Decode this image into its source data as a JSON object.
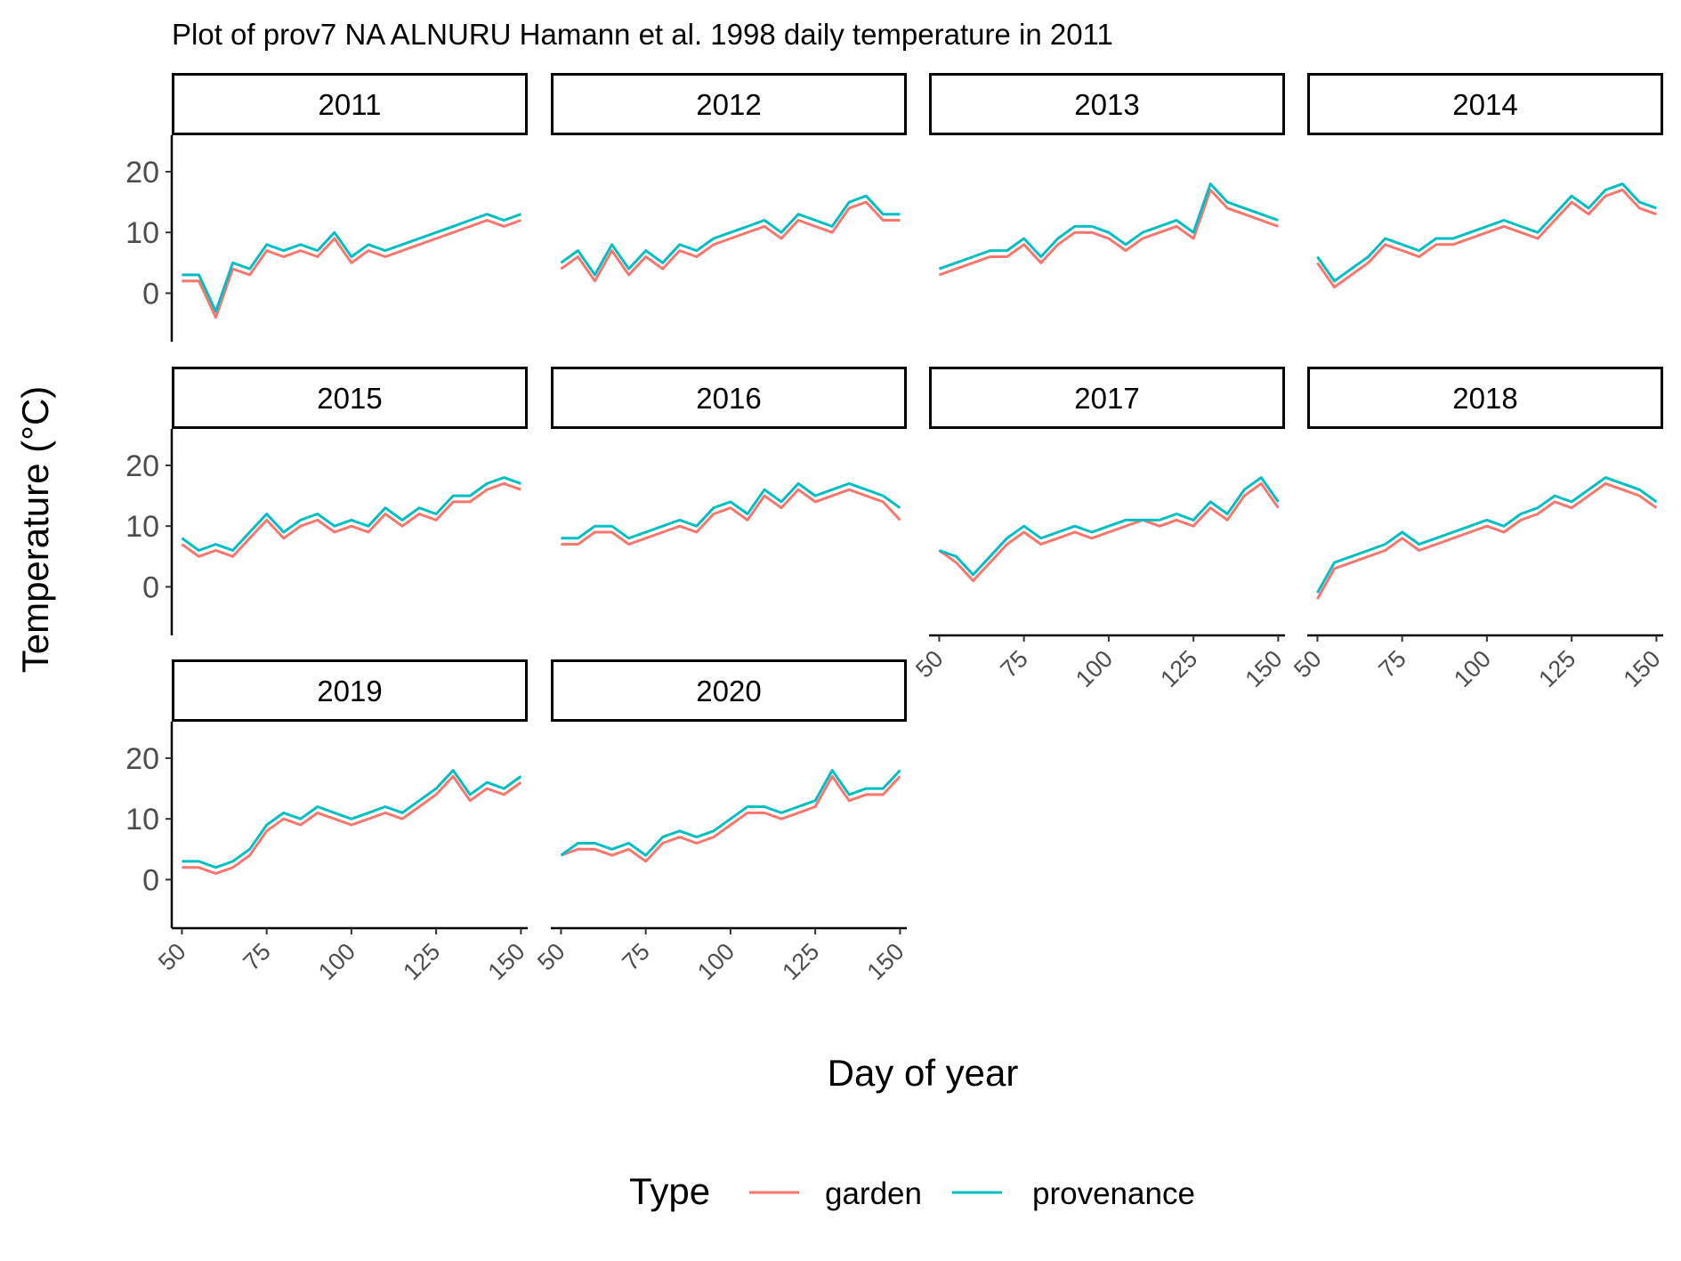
{
  "chart_data": {
    "type": "line",
    "title": "Plot of prov7 NA ALNURU Hamann et al. 1998 daily temperature in 2011",
    "xlabel": "Day of year",
    "ylabel": "Temperature (°C)",
    "xlim": [
      47,
      152
    ],
    "ylim": [
      -8,
      26
    ],
    "x_ticks": [
      50,
      75,
      100,
      125,
      150
    ],
    "y_ticks": [
      0,
      10,
      20
    ],
    "legend": {
      "title": "Type",
      "position": "bottom",
      "entries": [
        {
          "label": "garden",
          "color": "#F8766D"
        },
        {
          "label": "provenance",
          "color": "#00BFC4"
        }
      ]
    },
    "x": [
      50,
      55,
      60,
      65,
      70,
      75,
      80,
      85,
      90,
      95,
      100,
      105,
      110,
      115,
      120,
      125,
      130,
      135,
      140,
      145,
      150
    ],
    "panels": [
      {
        "label": "2011",
        "garden": [
          2,
          2,
          -4,
          4,
          3,
          7,
          6,
          7,
          6,
          9,
          5,
          7,
          6,
          7,
          8,
          9,
          10,
          11,
          12,
          11,
          12
        ],
        "provenance": [
          3,
          3,
          -3,
          5,
          4,
          8,
          7,
          8,
          7,
          10,
          6,
          8,
          7,
          8,
          9,
          10,
          11,
          12,
          13,
          12,
          13
        ]
      },
      {
        "label": "2012",
        "garden": [
          4,
          6,
          2,
          7,
          3,
          6,
          4,
          7,
          6,
          8,
          9,
          10,
          11,
          9,
          12,
          11,
          10,
          14,
          15,
          12,
          12
        ],
        "provenance": [
          5,
          7,
          3,
          8,
          4,
          7,
          5,
          8,
          7,
          9,
          10,
          11,
          12,
          10,
          13,
          12,
          11,
          15,
          16,
          13,
          13
        ]
      },
      {
        "label": "2013",
        "garden": [
          3,
          4,
          5,
          6,
          6,
          8,
          5,
          8,
          10,
          10,
          9,
          7,
          9,
          10,
          11,
          9,
          17,
          14,
          13,
          12,
          11
        ],
        "provenance": [
          4,
          5,
          6,
          7,
          7,
          9,
          6,
          9,
          11,
          11,
          10,
          8,
          10,
          11,
          12,
          10,
          18,
          15,
          14,
          13,
          12
        ]
      },
      {
        "label": "2014",
        "garden": [
          5,
          1,
          3,
          5,
          8,
          7,
          6,
          8,
          8,
          9,
          10,
          11,
          10,
          9,
          12,
          15,
          13,
          16,
          17,
          14,
          13
        ],
        "provenance": [
          6,
          2,
          4,
          6,
          9,
          8,
          7,
          9,
          9,
          10,
          11,
          12,
          11,
          10,
          13,
          16,
          14,
          17,
          18,
          15,
          14
        ]
      },
      {
        "label": "2015",
        "garden": [
          7,
          5,
          6,
          5,
          8,
          11,
          8,
          10,
          11,
          9,
          10,
          9,
          12,
          10,
          12,
          11,
          14,
          14,
          16,
          17,
          16
        ],
        "provenance": [
          8,
          6,
          7,
          6,
          9,
          12,
          9,
          11,
          12,
          10,
          11,
          10,
          13,
          11,
          13,
          12,
          15,
          15,
          17,
          18,
          17
        ]
      },
      {
        "label": "2016",
        "garden": [
          7,
          7,
          9,
          9,
          7,
          8,
          9,
          10,
          9,
          12,
          13,
          11,
          15,
          13,
          16,
          14,
          15,
          16,
          15,
          14,
          11
        ],
        "provenance": [
          8,
          8,
          10,
          10,
          8,
          9,
          10,
          11,
          10,
          13,
          14,
          12,
          16,
          14,
          17,
          15,
          16,
          17,
          16,
          15,
          13
        ]
      },
      {
        "label": "2017",
        "garden": [
          6,
          4,
          1,
          4,
          7,
          9,
          7,
          8,
          9,
          8,
          9,
          10,
          11,
          10,
          11,
          10,
          13,
          11,
          15,
          17,
          13
        ],
        "provenance": [
          6,
          5,
          2,
          5,
          8,
          10,
          8,
          9,
          10,
          9,
          10,
          11,
          11,
          11,
          12,
          11,
          14,
          12,
          16,
          18,
          14
        ]
      },
      {
        "label": "2018",
        "garden": [
          -2,
          3,
          4,
          5,
          6,
          8,
          6,
          7,
          8,
          9,
          10,
          9,
          11,
          12,
          14,
          13,
          15,
          17,
          16,
          15,
          13
        ],
        "provenance": [
          -1,
          4,
          5,
          6,
          7,
          9,
          7,
          8,
          9,
          10,
          11,
          10,
          12,
          13,
          15,
          14,
          16,
          18,
          17,
          16,
          14
        ]
      },
      {
        "label": "2019",
        "garden": [
          2,
          2,
          1,
          2,
          4,
          8,
          10,
          9,
          11,
          10,
          9,
          10,
          11,
          10,
          12,
          14,
          17,
          13,
          15,
          14,
          16
        ],
        "provenance": [
          3,
          3,
          2,
          3,
          5,
          9,
          11,
          10,
          12,
          11,
          10,
          11,
          12,
          11,
          13,
          15,
          18,
          14,
          16,
          15,
          17
        ]
      },
      {
        "label": "2020",
        "garden": [
          4,
          5,
          5,
          4,
          5,
          3,
          6,
          7,
          6,
          7,
          9,
          11,
          11,
          10,
          11,
          12,
          17,
          13,
          14,
          14,
          17
        ],
        "provenance": [
          4,
          6,
          6,
          5,
          6,
          4,
          7,
          8,
          7,
          8,
          10,
          12,
          12,
          11,
          12,
          13,
          18,
          14,
          15,
          15,
          18
        ]
      }
    ]
  }
}
